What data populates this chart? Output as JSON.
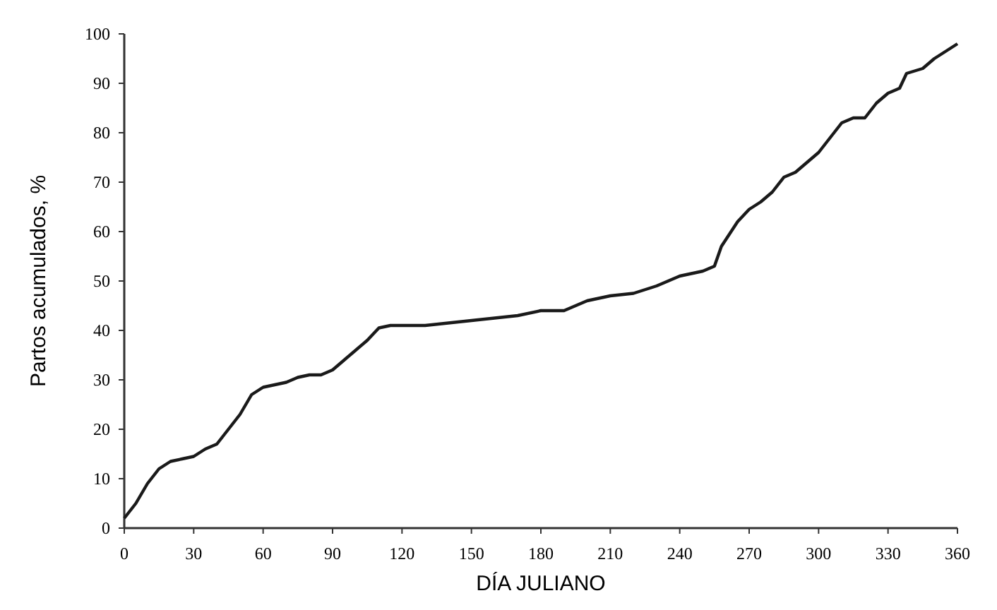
{
  "chart_data": {
    "type": "line",
    "xlabel": "DÍA JULIANO",
    "ylabel": "Partos acumulados, %",
    "x": [
      0,
      5,
      10,
      15,
      20,
      25,
      30,
      35,
      40,
      45,
      50,
      55,
      60,
      65,
      70,
      75,
      80,
      85,
      90,
      95,
      100,
      105,
      110,
      115,
      120,
      130,
      140,
      150,
      160,
      170,
      180,
      190,
      195,
      200,
      210,
      220,
      230,
      240,
      250,
      255,
      258,
      265,
      270,
      275,
      280,
      285,
      290,
      295,
      300,
      305,
      310,
      315,
      320,
      325,
      330,
      335,
      338,
      345,
      350,
      360
    ],
    "series": [
      {
        "color": "#1a1a1a",
        "values": [
          2,
          5,
          9,
          12,
          13.5,
          14,
          14.5,
          16,
          17,
          20,
          23,
          27,
          28.5,
          29,
          29.5,
          30.5,
          31,
          31,
          32,
          34,
          36,
          38,
          40.5,
          41,
          41,
          41,
          41.5,
          42,
          42.5,
          43,
          44,
          44,
          45,
          46,
          47,
          47.5,
          49,
          51,
          52,
          53,
          57,
          62,
          64.5,
          66,
          68,
          71,
          72,
          74,
          76,
          79,
          82,
          83,
          83,
          86,
          88,
          89,
          92,
          93,
          95,
          98
        ]
      }
    ],
    "xlim": [
      0,
      360
    ],
    "xticks": [
      0,
      30,
      60,
      90,
      120,
      150,
      180,
      210,
      240,
      270,
      300,
      330,
      360
    ],
    "ylim": [
      0,
      100
    ],
    "yticks": [
      0,
      10,
      20,
      30,
      40,
      50,
      60,
      70,
      80,
      90,
      100
    ],
    "grid": false,
    "marker": "none",
    "line_style": "solid"
  }
}
